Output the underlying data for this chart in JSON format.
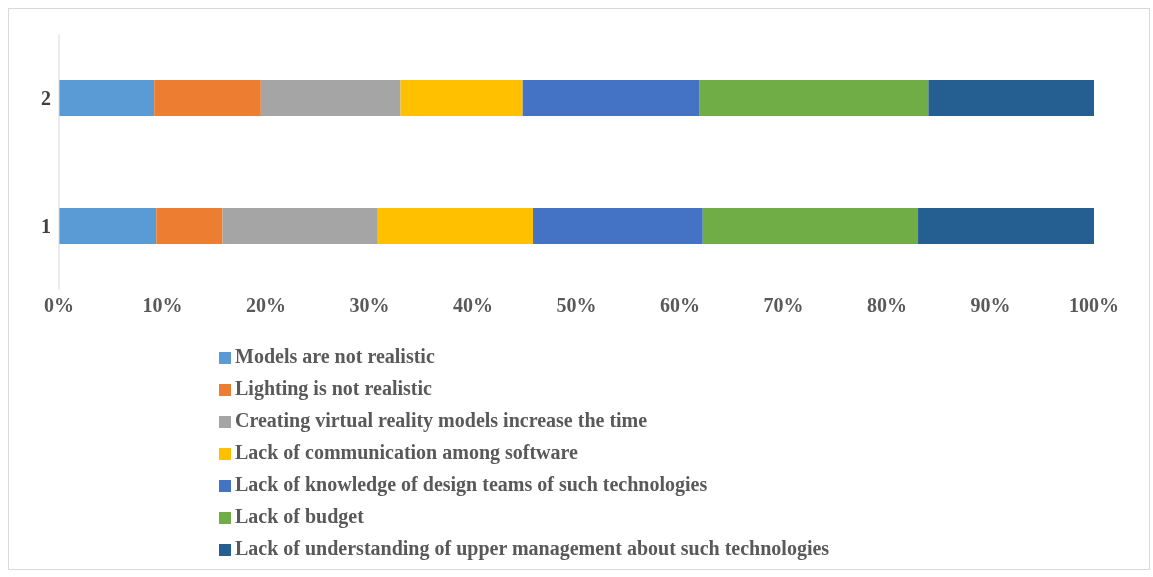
{
  "chart_data": {
    "type": "bar",
    "orientation": "horizontal",
    "stacked": true,
    "categories": [
      "2",
      "1"
    ],
    "series": [
      {
        "name": "Models are not realistic",
        "color": "#5b9bd5",
        "values": [
          9.2,
          9.4
        ]
      },
      {
        "name": "Lighting is not realistic",
        "color": "#ed7d31",
        "values": [
          10.3,
          6.4
        ]
      },
      {
        "name": "Creating virtual reality models increase the time",
        "color": "#a5a5a5",
        "values": [
          13.5,
          15.0
        ]
      },
      {
        "name": "Lack of communication among software",
        "color": "#ffc000",
        "values": [
          11.8,
          15.0
        ]
      },
      {
        "name": "Lack of knowledge of design teams of such technologies",
        "color": "#4472c4",
        "values": [
          17.1,
          16.4
        ]
      },
      {
        "name": "Lack of budget",
        "color": "#70ad47",
        "values": [
          22.1,
          20.8
        ]
      },
      {
        "name": "Lack of understanding of upper management about such technologies",
        "color": "#255e91",
        "values": [
          16.0,
          17.0
        ]
      }
    ],
    "xlim": [
      0,
      100
    ],
    "xticks": [
      {
        "value": 0,
        "label": "0%"
      },
      {
        "value": 10,
        "label": "10%"
      },
      {
        "value": 20,
        "label": "20%"
      },
      {
        "value": 30,
        "label": "30%"
      },
      {
        "value": 40,
        "label": "40%"
      },
      {
        "value": 50,
        "label": "50%"
      },
      {
        "value": 60,
        "label": "60%"
      },
      {
        "value": 70,
        "label": "70%"
      },
      {
        "value": 80,
        "label": "80%"
      },
      {
        "value": 90,
        "label": "90%"
      },
      {
        "value": 100,
        "label": "100%"
      }
    ],
    "grid": false,
    "legend": "bottom"
  }
}
